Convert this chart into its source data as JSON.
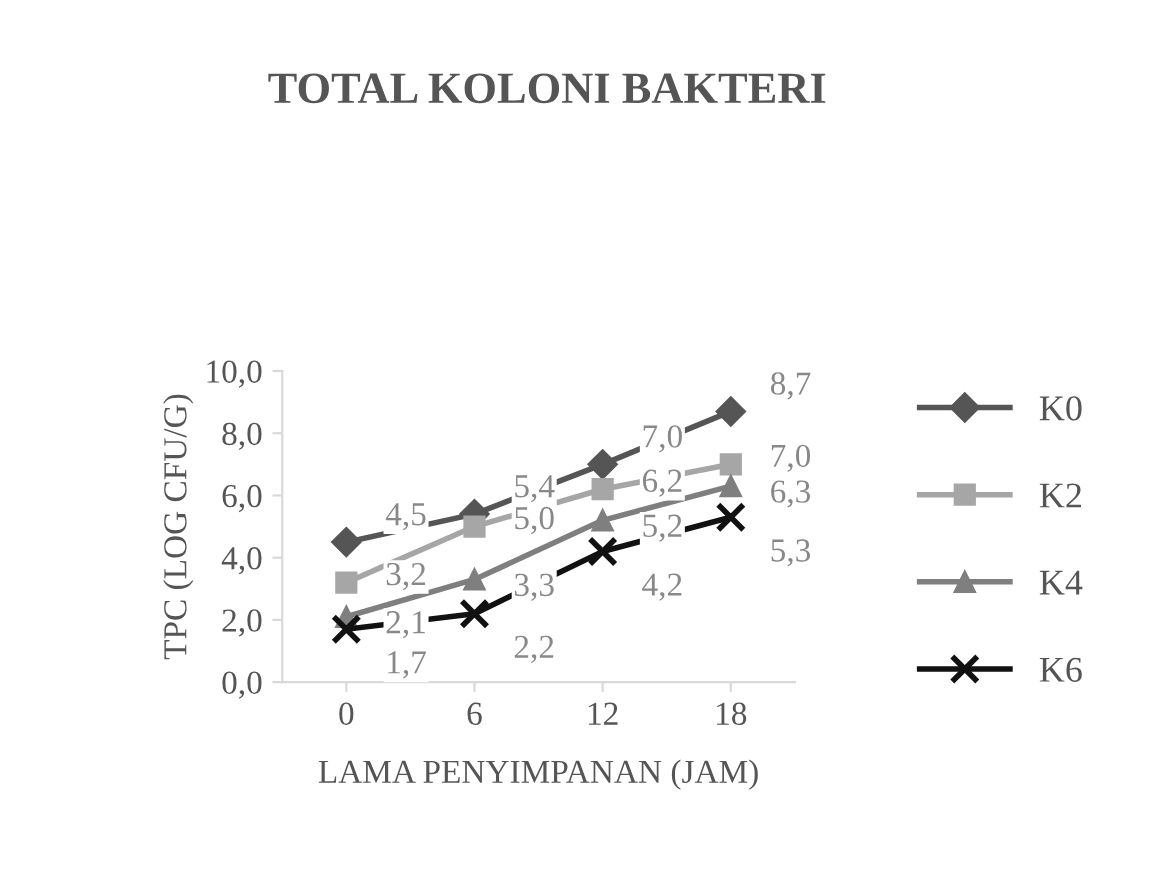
{
  "chart_data": {
    "type": "line",
    "title": "TOTAL KOLONI BAKTERI",
    "xlabel": "LAMA PENYIMPANAN (JAM)",
    "ylabel": "TPC (LOG CFU/G)",
    "categories": [
      "0",
      "6",
      "12",
      "18"
    ],
    "series": [
      {
        "name": "K0",
        "color": "#555555",
        "marker": "diamond",
        "values": [
          4.5,
          5.4,
          7.0,
          8.7
        ],
        "value_labels": [
          "4,5",
          "5,4",
          "7,0",
          "8,7"
        ]
      },
      {
        "name": "K2",
        "color": "#a6a6a6",
        "marker": "square",
        "values": [
          3.2,
          5.0,
          6.2,
          7.0
        ],
        "value_labels": [
          "3,2",
          "5,0",
          "6,2",
          "7,0"
        ]
      },
      {
        "name": "K4",
        "color": "#7f7f7f",
        "marker": "triangle",
        "values": [
          2.1,
          3.3,
          5.2,
          6.3
        ],
        "value_labels": [
          "2,1",
          "3,3",
          "5,2",
          "6,3"
        ]
      },
      {
        "name": "K6",
        "color": "#111111",
        "marker": "cross",
        "values": [
          1.7,
          2.2,
          4.2,
          5.3
        ],
        "value_labels": [
          "1,7",
          "2,2",
          "4,2",
          "5,3"
        ]
      }
    ],
    "ylim": [
      0,
      10
    ],
    "yticks": [
      {
        "value": 0,
        "label": "0,0"
      },
      {
        "value": 2,
        "label": "2,0"
      },
      {
        "value": 4,
        "label": "4,0"
      },
      {
        "value": 6,
        "label": "6,0"
      },
      {
        "value": 8,
        "label": "8,0"
      },
      {
        "value": 10,
        "label": "10,0"
      }
    ],
    "grid": false,
    "legend": "right",
    "line_style": "solid"
  }
}
